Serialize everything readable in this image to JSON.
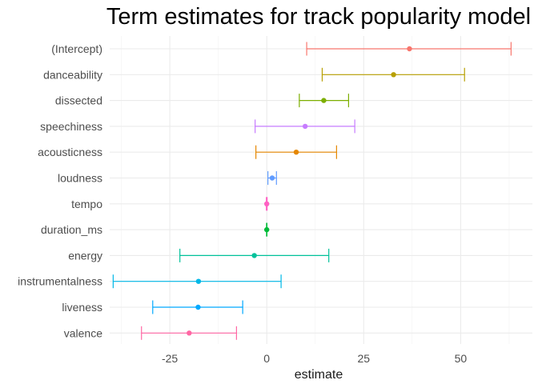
{
  "chart_data": {
    "type": "scatter",
    "title": "Term estimates for track popularity model",
    "xlabel": "estimate",
    "ylabel": "",
    "xlim": [
      -40.5,
      68.5
    ],
    "x_ticks": [
      -25,
      0,
      25,
      50
    ],
    "x_tick_labels": [
      "-25",
      "0",
      "25",
      "50"
    ],
    "grid": true,
    "legend": "none",
    "categories": [
      "(Intercept)",
      "danceability",
      "dissected",
      "speechiness",
      "acousticness",
      "loudness",
      "tempo",
      "duration_ms",
      "energy",
      "instrumentalness",
      "liveness",
      "valence"
    ],
    "series": [
      {
        "term": "(Intercept)",
        "estimate": 36.8,
        "low": 10.3,
        "high": 63.0,
        "color": "#F8766D"
      },
      {
        "term": "danceability",
        "estimate": 32.7,
        "low": 14.3,
        "high": 51.0,
        "color": "#B79F00"
      },
      {
        "term": "dissected",
        "estimate": 14.7,
        "low": 8.4,
        "high": 21.1,
        "color": "#7CAE00"
      },
      {
        "term": "speechiness",
        "estimate": 9.9,
        "low": -3.0,
        "high": 22.7,
        "color": "#C77CFF"
      },
      {
        "term": "acousticness",
        "estimate": 7.6,
        "low": -2.8,
        "high": 18.0,
        "color": "#E58700"
      },
      {
        "term": "loudness",
        "estimate": 1.4,
        "low": 0.3,
        "high": 2.5,
        "color": "#619CFF"
      },
      {
        "term": "tempo",
        "estimate": 0.0,
        "low": -0.1,
        "high": 0.1,
        "color": "#FF61C3"
      },
      {
        "term": "duration_ms",
        "estimate": 0.0,
        "low": -0.05,
        "high": 0.05,
        "color": "#00BA38"
      },
      {
        "term": "energy",
        "estimate": -3.2,
        "low": -22.4,
        "high": 16.0,
        "color": "#00C19A"
      },
      {
        "term": "instrumentalness",
        "estimate": -17.6,
        "low": -39.6,
        "high": 3.7,
        "color": "#00B8E7"
      },
      {
        "term": "liveness",
        "estimate": -17.7,
        "low": -29.4,
        "high": -6.2,
        "color": "#00A9FF"
      },
      {
        "term": "valence",
        "estimate": -20.0,
        "low": -32.3,
        "high": -7.8,
        "color": "#FF67A4"
      }
    ]
  }
}
